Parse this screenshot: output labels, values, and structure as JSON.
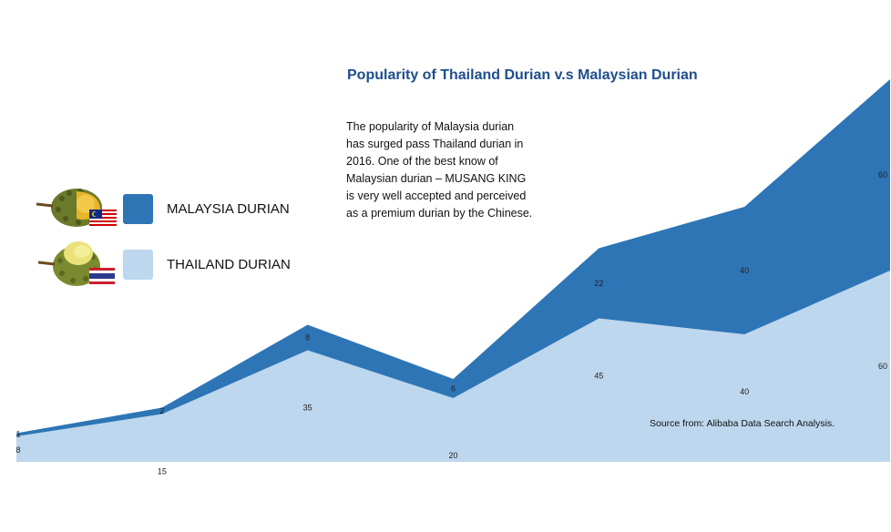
{
  "title": "Popularity of Thailand Durian v.s Malaysian Durian",
  "note": "The popularity of Malaysia durian has surged pass Thailand durian in 2016. One of the best know of Malaysian durian – MUSANG KING is very well accepted and perceived as a premium durian by the Chinese.",
  "source": "Source from: Alibaba Data Search Analysis.",
  "legend": [
    {
      "label": "MALAYSIA DURIAN",
      "color": "#2e75b6",
      "icon": "malaysia-durian-with-flag-icon"
    },
    {
      "label": "THAILAND DURIAN",
      "color": "#bdd7ee",
      "icon": "thailand-durian-with-flag-icon"
    }
  ],
  "chart_data": {
    "type": "area",
    "stacked": true,
    "categories": [
      "",
      "",
      "",
      "",
      "",
      "",
      ""
    ],
    "series": [
      {
        "name": "THAILAND DURIAN",
        "color": "#bdd7ee",
        "values": [
          8,
          15,
          35,
          20,
          45,
          40,
          60
        ],
        "value_labels": [
          "8",
          "15",
          "35",
          "20",
          "45",
          "40",
          "60"
        ]
      },
      {
        "name": "MALAYSIA DURIAN",
        "color": "#2e75b6",
        "values": [
          1,
          2,
          8,
          6,
          22,
          40,
          60
        ],
        "value_labels": [
          "1",
          "2",
          "8",
          "6",
          "22",
          "40",
          "60"
        ]
      }
    ],
    "axes_visible": false,
    "grid": false,
    "legend_position": "left"
  }
}
